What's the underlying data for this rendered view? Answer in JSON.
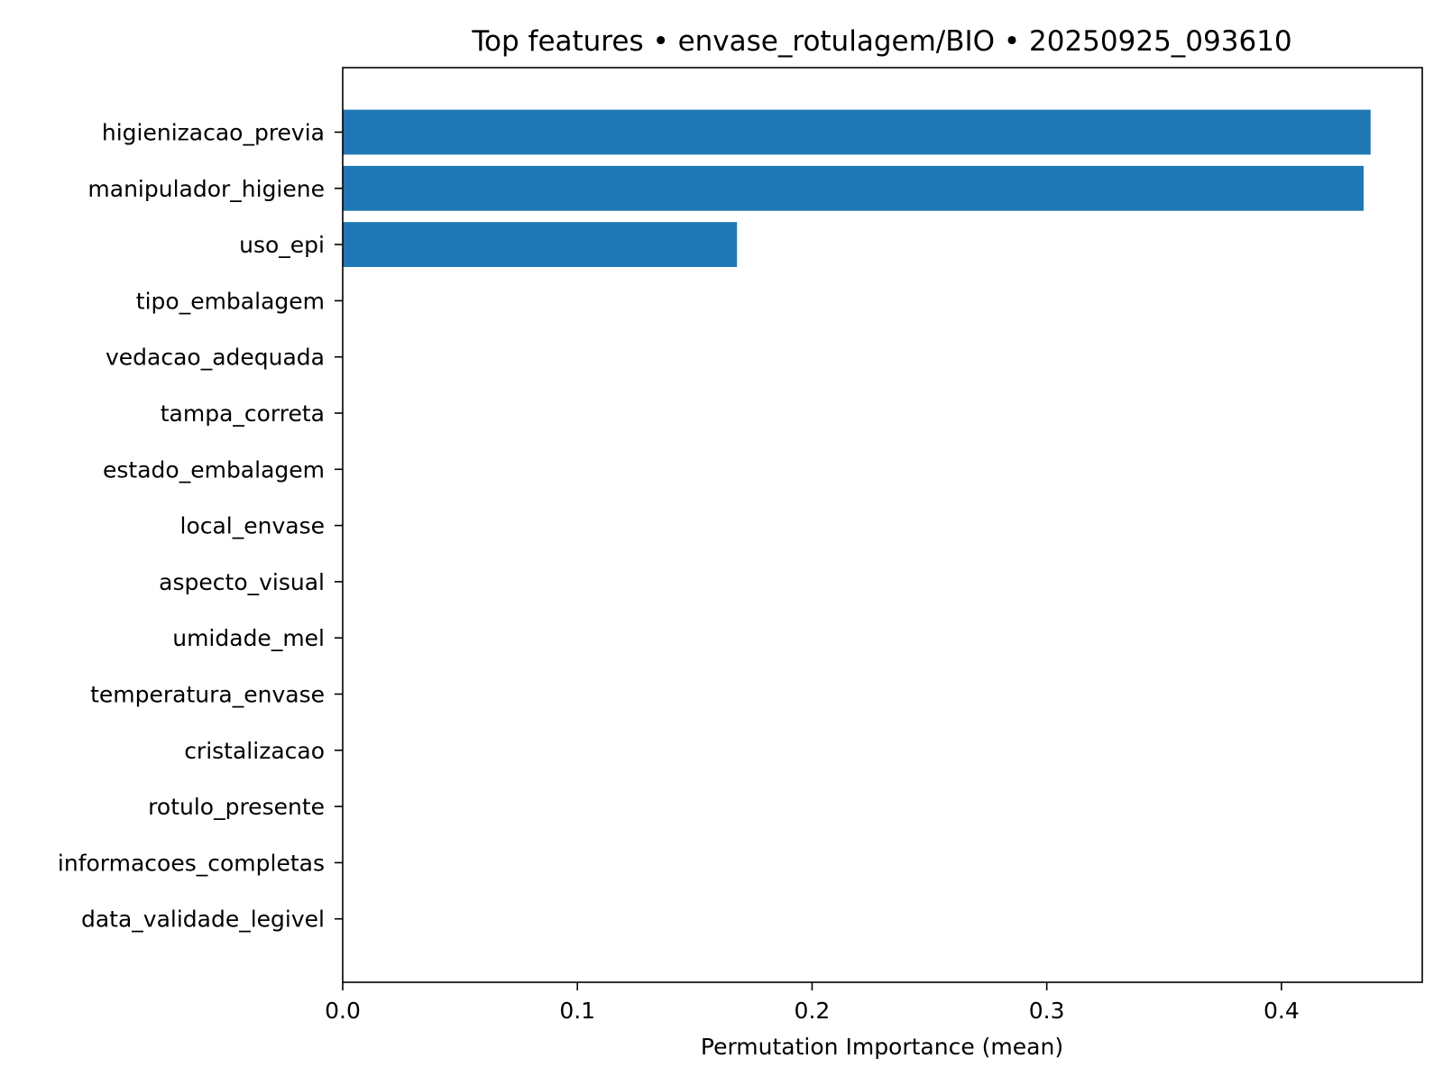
{
  "chart_data": {
    "type": "bar",
    "orientation": "horizontal",
    "title": "Top features • envase_rotulagem/BIO • 20250925_093610",
    "xlabel": "Permutation Importance (mean)",
    "ylabel": "",
    "xlim": [
      0.0,
      0.46
    ],
    "xticks": [
      0.0,
      0.1,
      0.2,
      0.3,
      0.4
    ],
    "xtick_labels": [
      "0.0",
      "0.1",
      "0.2",
      "0.3",
      "0.4"
    ],
    "grid": false,
    "legend": "none",
    "bar_color": "#1f77b4",
    "categories": [
      "higienizacao_previa",
      "manipulador_higiene",
      "uso_epi",
      "tipo_embalagem",
      "vedacao_adequada",
      "tampa_correta",
      "estado_embalagem",
      "local_envase",
      "aspecto_visual",
      "umidade_mel",
      "temperatura_envase",
      "cristalizacao",
      "rotulo_presente",
      "informacoes_completas",
      "data_validade_legivel"
    ],
    "values": [
      0.438,
      0.435,
      0.168,
      0.0,
      0.0,
      0.0,
      0.0,
      0.0,
      0.0,
      0.0,
      0.0,
      0.0,
      0.0,
      0.0,
      0.0
    ]
  }
}
